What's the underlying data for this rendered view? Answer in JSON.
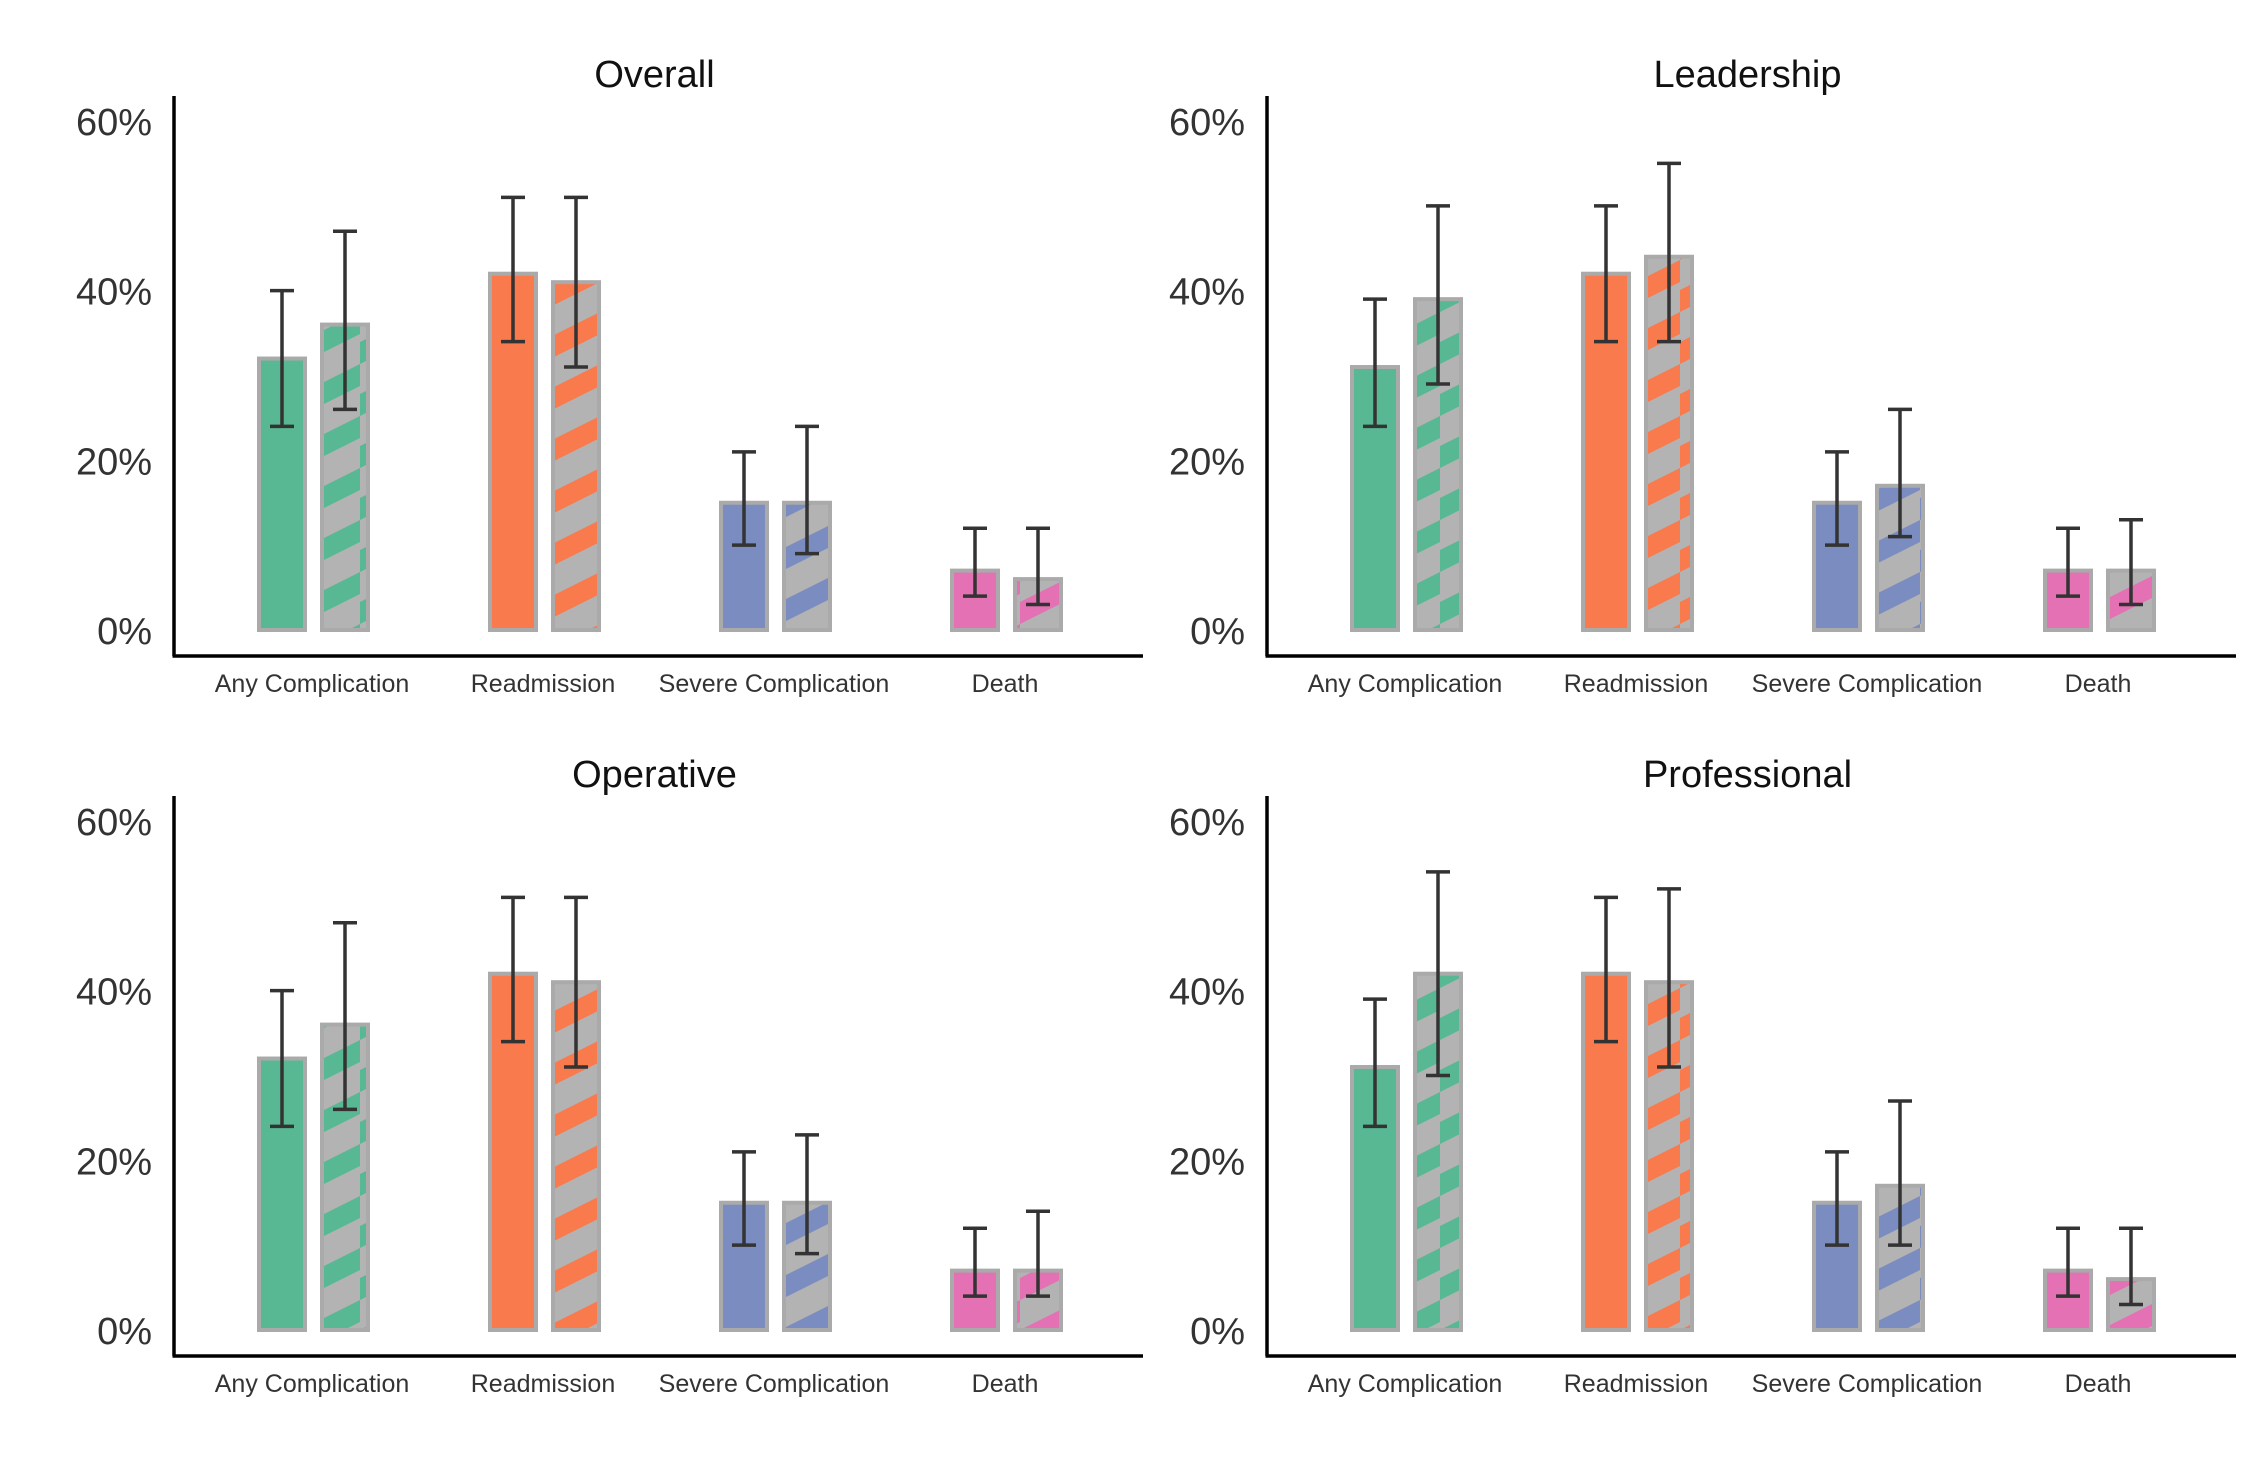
{
  "colors": {
    "Any Complication": "#57b893",
    "Readmission": "#f97a4d",
    "Severe Complication": "#7b8cc0",
    "Death": "#e371b3",
    "hatch_base": "#b3b3b3",
    "bar_border": "#aaaaaa",
    "error_bar": "#333333",
    "axis": "#000000"
  },
  "chart_data": [
    {
      "type": "bar",
      "title": "Overall",
      "categories": [
        "Any Complication",
        "Readmission",
        "Severe Complication",
        "Death"
      ],
      "ylim": [
        0,
        0.6
      ],
      "yticks": [
        0,
        0.2,
        0.4,
        0.6
      ],
      "ytick_labels": [
        "0%",
        "20%",
        "40%",
        "60%"
      ],
      "grid": false,
      "series": [
        {
          "style": "solid",
          "values": [
            0.32,
            0.42,
            0.15,
            0.07
          ],
          "err_low": [
            0.24,
            0.34,
            0.1,
            0.04
          ],
          "err_high": [
            0.4,
            0.51,
            0.21,
            0.12
          ]
        },
        {
          "style": "hatched",
          "values": [
            0.36,
            0.41,
            0.15,
            0.06
          ],
          "err_low": [
            0.26,
            0.31,
            0.09,
            0.03
          ],
          "err_high": [
            0.47,
            0.51,
            0.24,
            0.12
          ]
        }
      ]
    },
    {
      "type": "bar",
      "title": "Leadership",
      "categories": [
        "Any Complication",
        "Readmission",
        "Severe Complication",
        "Death"
      ],
      "ylim": [
        0,
        0.6
      ],
      "yticks": [
        0,
        0.2,
        0.4,
        0.6
      ],
      "ytick_labels": [
        "0%",
        "20%",
        "40%",
        "60%"
      ],
      "grid": false,
      "series": [
        {
          "style": "solid",
          "values": [
            0.31,
            0.42,
            0.15,
            0.07
          ],
          "err_low": [
            0.24,
            0.34,
            0.1,
            0.04
          ],
          "err_high": [
            0.39,
            0.5,
            0.21,
            0.12
          ]
        },
        {
          "style": "hatched",
          "values": [
            0.39,
            0.44,
            0.17,
            0.07
          ],
          "err_low": [
            0.29,
            0.34,
            0.11,
            0.03
          ],
          "err_high": [
            0.5,
            0.55,
            0.26,
            0.13
          ]
        }
      ]
    },
    {
      "type": "bar",
      "title": "Operative",
      "categories": [
        "Any Complication",
        "Readmission",
        "Severe Complication",
        "Death"
      ],
      "ylim": [
        0,
        0.6
      ],
      "yticks": [
        0,
        0.2,
        0.4,
        0.6
      ],
      "ytick_labels": [
        "0%",
        "20%",
        "40%",
        "60%"
      ],
      "grid": false,
      "series": [
        {
          "style": "solid",
          "values": [
            0.32,
            0.42,
            0.15,
            0.07
          ],
          "err_low": [
            0.24,
            0.34,
            0.1,
            0.04
          ],
          "err_high": [
            0.4,
            0.51,
            0.21,
            0.12
          ]
        },
        {
          "style": "hatched",
          "values": [
            0.36,
            0.41,
            0.15,
            0.07
          ],
          "err_low": [
            0.26,
            0.31,
            0.09,
            0.04
          ],
          "err_high": [
            0.48,
            0.51,
            0.23,
            0.14
          ]
        }
      ]
    },
    {
      "type": "bar",
      "title": "Professional",
      "categories": [
        "Any Complication",
        "Readmission",
        "Severe Complication",
        "Death"
      ],
      "ylim": [
        0,
        0.6
      ],
      "yticks": [
        0,
        0.2,
        0.4,
        0.6
      ],
      "ytick_labels": [
        "0%",
        "20%",
        "40%",
        "60%"
      ],
      "grid": false,
      "series": [
        {
          "style": "solid",
          "values": [
            0.31,
            0.42,
            0.15,
            0.07
          ],
          "err_low": [
            0.24,
            0.34,
            0.1,
            0.04
          ],
          "err_high": [
            0.39,
            0.51,
            0.21,
            0.12
          ]
        },
        {
          "style": "hatched",
          "values": [
            0.42,
            0.41,
            0.17,
            0.06
          ],
          "err_low": [
            0.3,
            0.31,
            0.1,
            0.03
          ],
          "err_high": [
            0.54,
            0.52,
            0.27,
            0.12
          ]
        }
      ]
    }
  ]
}
